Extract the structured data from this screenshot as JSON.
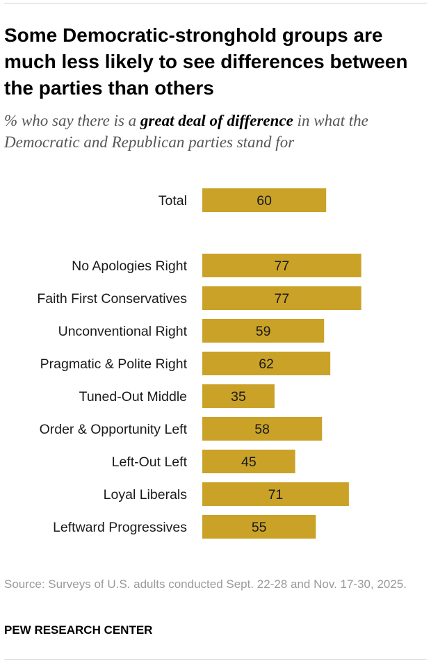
{
  "title": "Some Democratic-stronghold groups are much less likely to see differences between the parties than others",
  "subtitle": {
    "before": "% who say there is a ",
    "emphasis": "great deal of difference",
    "after": " in what the Democratic and Republican parties stand for"
  },
  "chart_data": {
    "type": "bar",
    "orientation": "horizontal",
    "categories": [
      "Total",
      "No Apologies Right",
      "Faith First Conservatives",
      "Unconventional Right",
      "Pragmatic & Polite Right",
      "Tuned-Out Middle",
      "Order & Opportunity Left",
      "Left-Out Left",
      "Loyal Liberals",
      "Leftward Progressives"
    ],
    "values": [
      60,
      77,
      77,
      59,
      62,
      35,
      58,
      45,
      71,
      55
    ],
    "bar_color": "#c9a227",
    "xlim": [
      0,
      100
    ],
    "data_labels": true,
    "grid": false,
    "xlabel": "",
    "ylabel": ""
  },
  "source": "Source: Surveys of U.S. adults conducted Sept. 22-28 and Nov. 17-30, 2025.",
  "organization": "PEW RESEARCH CENTER"
}
